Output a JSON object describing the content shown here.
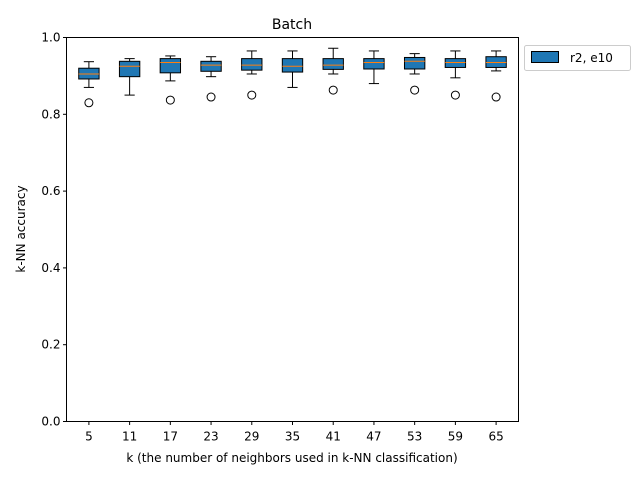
{
  "chart_data": {
    "type": "box",
    "title": "Batch",
    "xlabel": "k (the number of neighbors used in k-NN classification)",
    "ylabel": "k-NN accuracy",
    "ylim": [
      0,
      1.0
    ],
    "yticks": [
      "0.0",
      "0.2",
      "0.4",
      "0.6",
      "0.8",
      "1.0"
    ],
    "categories": [
      "5",
      "11",
      "17",
      "23",
      "29",
      "35",
      "41",
      "47",
      "53",
      "59",
      "65"
    ],
    "legend": {
      "placement": "outside-top-right",
      "entries": [
        "r2, e10"
      ]
    },
    "grid": false,
    "colors": {
      "box_fill": "#1f77b4",
      "median": "#ff7f0e",
      "edge": "#000000"
    },
    "series": [
      {
        "name": "r2, e10",
        "boxes": [
          {
            "whislo": 0.87,
            "q1": 0.892,
            "med": 0.905,
            "q3": 0.92,
            "whishi": 0.937,
            "fliers": [
              0.83
            ]
          },
          {
            "whislo": 0.85,
            "q1": 0.898,
            "med": 0.925,
            "q3": 0.938,
            "whishi": 0.945,
            "fliers": []
          },
          {
            "whislo": 0.887,
            "q1": 0.908,
            "med": 0.935,
            "q3": 0.945,
            "whishi": 0.952,
            "fliers": [
              0.837
            ]
          },
          {
            "whislo": 0.898,
            "q1": 0.912,
            "med": 0.928,
            "q3": 0.938,
            "whishi": 0.95,
            "fliers": [
              0.845
            ]
          },
          {
            "whislo": 0.905,
            "q1": 0.915,
            "med": 0.928,
            "q3": 0.945,
            "whishi": 0.965,
            "fliers": [
              0.85
            ]
          },
          {
            "whislo": 0.87,
            "q1": 0.91,
            "med": 0.925,
            "q3": 0.945,
            "whishi": 0.965,
            "fliers": []
          },
          {
            "whislo": 0.905,
            "q1": 0.917,
            "med": 0.928,
            "q3": 0.945,
            "whishi": 0.972,
            "fliers": [
              0.863
            ]
          },
          {
            "whislo": 0.88,
            "q1": 0.918,
            "med": 0.935,
            "q3": 0.945,
            "whishi": 0.965,
            "fliers": []
          },
          {
            "whislo": 0.905,
            "q1": 0.918,
            "med": 0.938,
            "q3": 0.948,
            "whishi": 0.958,
            "fliers": [
              0.863
            ]
          },
          {
            "whislo": 0.895,
            "q1": 0.922,
            "med": 0.935,
            "q3": 0.945,
            "whishi": 0.965,
            "fliers": [
              0.85
            ]
          },
          {
            "whislo": 0.913,
            "q1": 0.922,
            "med": 0.935,
            "q3": 0.95,
            "whishi": 0.965,
            "fliers": [
              0.845
            ]
          }
        ]
      }
    ]
  }
}
